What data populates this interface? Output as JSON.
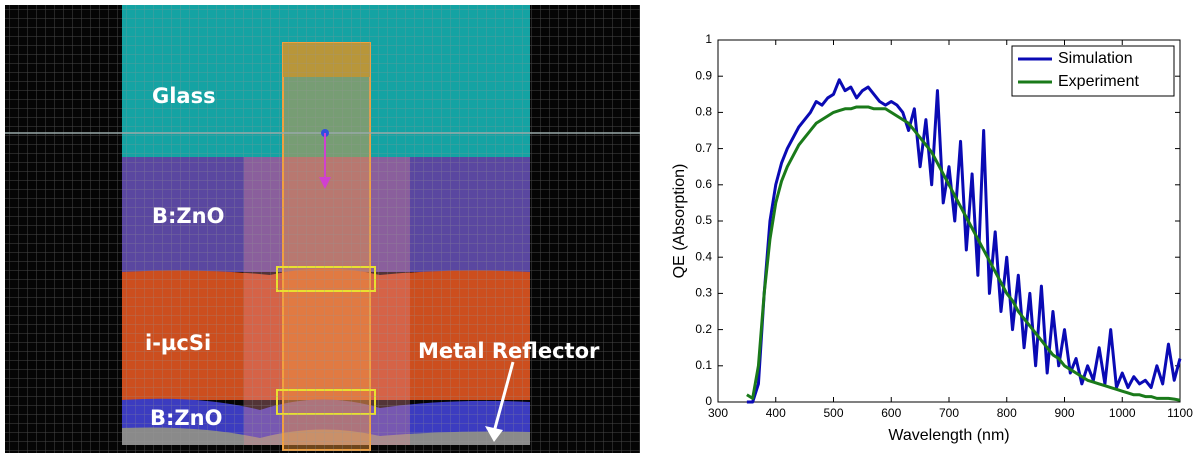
{
  "diagram": {
    "labels": [
      "Glass",
      "B:ZnO",
      "i-µcSi",
      "Metal Reflector",
      "B:ZnO"
    ]
  },
  "chart_data": {
    "type": "line",
    "xlabel": "Wavelength (nm)",
    "ylabel": "QE (Absorption)",
    "xlim": [
      300,
      1100
    ],
    "ylim": [
      0,
      1
    ],
    "xticks": [
      300,
      400,
      500,
      600,
      700,
      800,
      900,
      1000,
      1100
    ],
    "yticks": [
      0,
      0.1,
      0.2,
      0.3,
      0.4,
      0.5,
      0.6,
      0.7,
      0.8,
      0.9,
      1
    ],
    "legend": "upper right",
    "x": [
      350,
      360,
      370,
      380,
      390,
      400,
      410,
      420,
      430,
      440,
      450,
      460,
      470,
      480,
      490,
      500,
      510,
      520,
      530,
      540,
      550,
      560,
      570,
      580,
      590,
      600,
      610,
      620,
      630,
      640,
      650,
      660,
      670,
      680,
      690,
      700,
      710,
      720,
      730,
      740,
      750,
      760,
      770,
      780,
      790,
      800,
      810,
      820,
      830,
      840,
      850,
      860,
      870,
      880,
      890,
      900,
      910,
      920,
      930,
      940,
      950,
      960,
      970,
      980,
      990,
      1000,
      1010,
      1020,
      1030,
      1040,
      1050,
      1060,
      1070,
      1080,
      1090,
      1100
    ],
    "series": [
      {
        "name": "Simulation",
        "color": "#0a0ab4",
        "values": [
          0,
          0,
          0.05,
          0.3,
          0.5,
          0.6,
          0.66,
          0.7,
          0.73,
          0.76,
          0.78,
          0.8,
          0.83,
          0.82,
          0.84,
          0.85,
          0.89,
          0.86,
          0.87,
          0.84,
          0.86,
          0.87,
          0.85,
          0.83,
          0.82,
          0.83,
          0.82,
          0.8,
          0.75,
          0.81,
          0.65,
          0.78,
          0.6,
          0.86,
          0.55,
          0.65,
          0.5,
          0.72,
          0.42,
          0.63,
          0.35,
          0.75,
          0.3,
          0.47,
          0.25,
          0.4,
          0.2,
          0.35,
          0.15,
          0.3,
          0.1,
          0.32,
          0.08,
          0.25,
          0.1,
          0.2,
          0.08,
          0.12,
          0.05,
          0.1,
          0.06,
          0.15,
          0.05,
          0.2,
          0.04,
          0.08,
          0.04,
          0.07,
          0.05,
          0.06,
          0.04,
          0.1,
          0.05,
          0.16,
          0.06,
          0.12
        ]
      },
      {
        "name": "Experiment",
        "color": "#1a7a1a",
        "values": [
          0.02,
          0.01,
          0.1,
          0.3,
          0.45,
          0.55,
          0.61,
          0.65,
          0.68,
          0.71,
          0.73,
          0.75,
          0.77,
          0.78,
          0.79,
          0.8,
          0.805,
          0.81,
          0.81,
          0.815,
          0.815,
          0.815,
          0.81,
          0.81,
          0.81,
          0.8,
          0.79,
          0.78,
          0.77,
          0.75,
          0.73,
          0.71,
          0.69,
          0.66,
          0.63,
          0.6,
          0.57,
          0.54,
          0.51,
          0.48,
          0.45,
          0.42,
          0.39,
          0.36,
          0.33,
          0.3,
          0.28,
          0.25,
          0.23,
          0.21,
          0.19,
          0.17,
          0.15,
          0.13,
          0.12,
          0.1,
          0.09,
          0.08,
          0.07,
          0.06,
          0.055,
          0.05,
          0.045,
          0.04,
          0.035,
          0.03,
          0.025,
          0.02,
          0.02,
          0.015,
          0.015,
          0.01,
          0.01,
          0.01,
          0.008,
          0.005
        ]
      }
    ]
  }
}
